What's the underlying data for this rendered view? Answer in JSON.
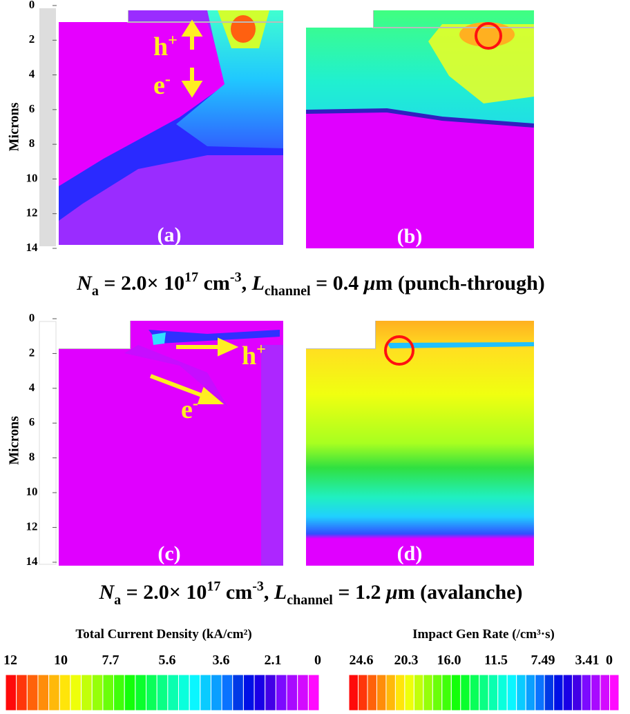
{
  "rows": [
    {
      "y_label": "Microns",
      "y_ticks": [
        0,
        2,
        4,
        6,
        8,
        10,
        12,
        14
      ],
      "panels": [
        {
          "label": "(a)"
        },
        {
          "label": "(b)"
        }
      ],
      "annotations": [
        {
          "base": "h",
          "sup": "+"
        },
        {
          "base": "e",
          "sup": "-"
        }
      ],
      "caption": [
        "N",
        "a",
        " = 2.0× 10",
        "17",
        " cm",
        "-3",
        ", ",
        "L",
        "channel",
        " = 0.4 ",
        "μ",
        "m (punch-through)"
      ]
    },
    {
      "y_label": "Microns",
      "y_ticks": [
        0,
        2,
        4,
        6,
        8,
        10,
        12,
        14
      ],
      "panels": [
        {
          "label": "(c)"
        },
        {
          "label": "(d)"
        }
      ],
      "annotations": [
        {
          "base": "h",
          "sup": "+"
        },
        {
          "base": "e",
          "sup": "-"
        }
      ],
      "caption": [
        "N",
        "a",
        " = 2.0× 10",
        "17",
        " cm",
        "-3",
        ", ",
        "L",
        "channel",
        " = 1.2 ",
        "μ",
        "m (avalanche)"
      ]
    }
  ],
  "colorbars": [
    {
      "title": "Total Current Density (kA/cm²)",
      "labels": [
        "12",
        "10",
        "7.7",
        "5.6",
        "3.6",
        "2.1",
        "0"
      ]
    },
    {
      "title": "Impact Gen Rate (/cm³·s)",
      "labels": [
        "24.6",
        "20.3",
        "16.0",
        "11.5",
        "7.49",
        "3.41",
        "0"
      ]
    }
  ]
}
